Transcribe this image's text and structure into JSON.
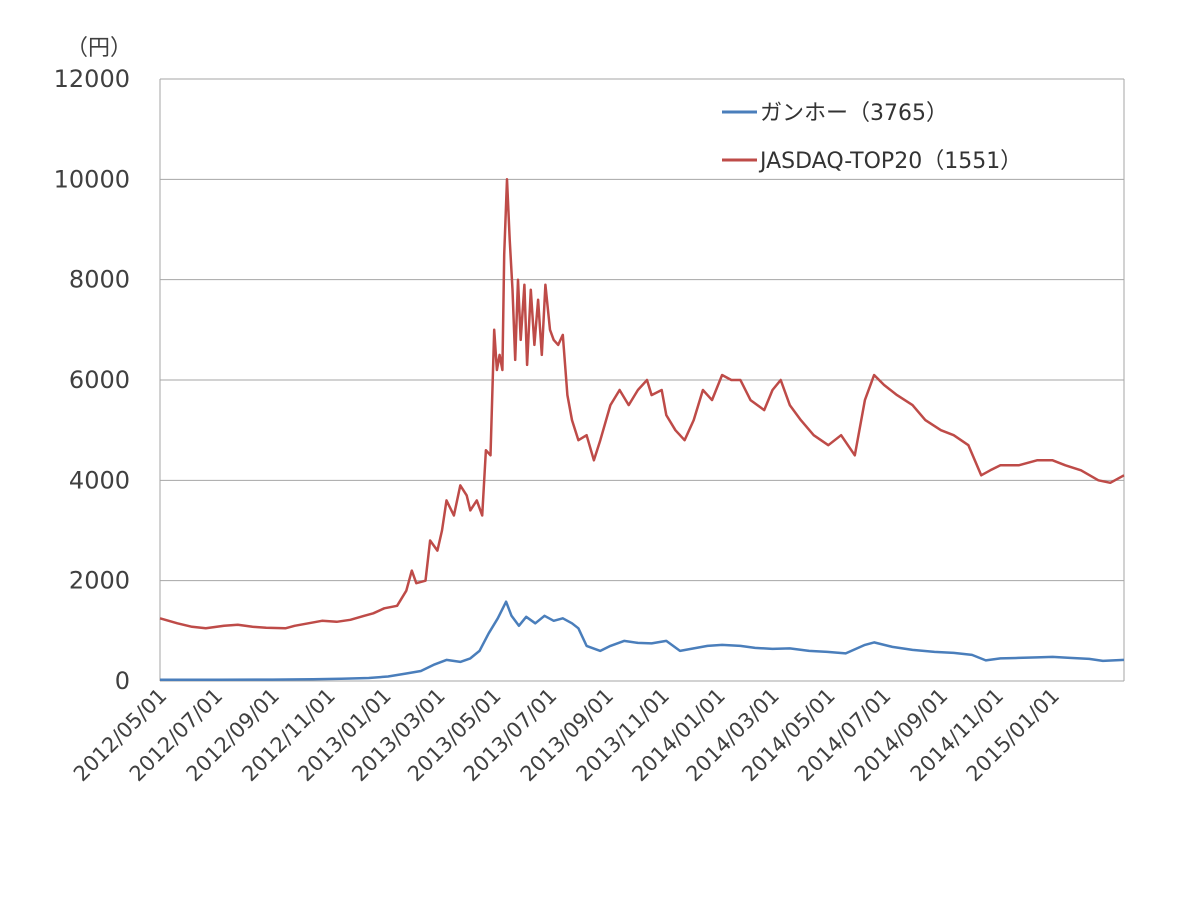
{
  "chart_data": {
    "type": "line",
    "title": "",
    "xlabel": "",
    "ylabel": "（円）",
    "ylim": [
      0,
      12000
    ],
    "y_ticks": [
      "0",
      "2000",
      "4000",
      "6000",
      "8000",
      "10000",
      "12000"
    ],
    "x_ticks": [
      "2012/05/01",
      "2012/07/01",
      "2012/09/01",
      "2012/11/01",
      "2013/01/01",
      "2013/03/01",
      "2013/05/01",
      "2013/07/01",
      "2013/09/01",
      "2013/11/01",
      "2014/01/01",
      "2014/03/01",
      "2014/05/01",
      "2014/07/01",
      "2014/09/01",
      "2014/11/01",
      "2015/01/01"
    ],
    "x_range": [
      "2012/05/01",
      "2015/03/20"
    ],
    "grid": "horizontal",
    "legend_position": "top-right",
    "series": [
      {
        "name": "ガンホー（3765）",
        "color": "#4a7ebb",
        "points": [
          [
            "2012/05/01",
            25
          ],
          [
            "2012/07/01",
            25
          ],
          [
            "2012/09/01",
            28
          ],
          [
            "2012/10/15",
            35
          ],
          [
            "2012/11/15",
            45
          ],
          [
            "2012/12/15",
            60
          ],
          [
            "2013/01/05",
            90
          ],
          [
            "2013/01/25",
            150
          ],
          [
            "2013/02/10",
            200
          ],
          [
            "2013/02/25",
            330
          ],
          [
            "2013/03/10",
            420
          ],
          [
            "2013/03/25",
            380
          ],
          [
            "2013/04/05",
            450
          ],
          [
            "2013/04/15",
            600
          ],
          [
            "2013/04/25",
            950
          ],
          [
            "2013/05/05",
            1250
          ],
          [
            "2013/05/14",
            1580
          ],
          [
            "2013/05/20",
            1300
          ],
          [
            "2013/05/28",
            1100
          ],
          [
            "2013/06/05",
            1280
          ],
          [
            "2013/06/15",
            1150
          ],
          [
            "2013/06/25",
            1300
          ],
          [
            "2013/07/05",
            1200
          ],
          [
            "2013/07/15",
            1250
          ],
          [
            "2013/07/25",
            1150
          ],
          [
            "2013/08/01",
            1050
          ],
          [
            "2013/08/10",
            700
          ],
          [
            "2013/08/25",
            600
          ],
          [
            "2013/09/05",
            700
          ],
          [
            "2013/09/20",
            800
          ],
          [
            "2013/10/05",
            760
          ],
          [
            "2013/10/20",
            750
          ],
          [
            "2013/11/05",
            800
          ],
          [
            "2013/11/20",
            600
          ],
          [
            "2013/12/05",
            650
          ],
          [
            "2013/12/20",
            700
          ],
          [
            "2014/01/05",
            720
          ],
          [
            "2014/01/25",
            700
          ],
          [
            "2014/02/10",
            660
          ],
          [
            "2014/03/01",
            640
          ],
          [
            "2014/03/20",
            650
          ],
          [
            "2014/04/10",
            600
          ],
          [
            "2014/04/30",
            580
          ],
          [
            "2014/05/20",
            550
          ],
          [
            "2014/06/10",
            720
          ],
          [
            "2014/06/20",
            770
          ],
          [
            "2014/07/10",
            680
          ],
          [
            "2014/08/01",
            620
          ],
          [
            "2014/08/25",
            580
          ],
          [
            "2014/09/15",
            560
          ],
          [
            "2014/10/05",
            520
          ],
          [
            "2014/10/20",
            410
          ],
          [
            "2014/11/05",
            450
          ],
          [
            "2014/11/25",
            460
          ],
          [
            "2014/12/15",
            470
          ],
          [
            "2015/01/01",
            480
          ],
          [
            "2015/01/20",
            460
          ],
          [
            "2015/02/10",
            440
          ],
          [
            "2015/02/25",
            400
          ],
          [
            "2015/03/20",
            420
          ]
        ]
      },
      {
        "name": "JASDAQ-TOP20（1551）",
        "color": "#be4b48",
        "points": [
          [
            "2012/05/01",
            1250
          ],
          [
            "2012/05/20",
            1150
          ],
          [
            "2012/06/05",
            1080
          ],
          [
            "2012/06/20",
            1050
          ],
          [
            "2012/07/10",
            1100
          ],
          [
            "2012/07/25",
            1120
          ],
          [
            "2012/08/10",
            1080
          ],
          [
            "2012/08/25",
            1060
          ],
          [
            "2012/09/15",
            1050
          ],
          [
            "2012/09/25",
            1100
          ],
          [
            "2012/10/10",
            1150
          ],
          [
            "2012/10/25",
            1200
          ],
          [
            "2012/11/10",
            1180
          ],
          [
            "2012/11/25",
            1220
          ],
          [
            "2012/12/10",
            1300
          ],
          [
            "2012/12/20",
            1350
          ],
          [
            "2013/01/01",
            1450
          ],
          [
            "2013/01/15",
            1500
          ],
          [
            "2013/01/25",
            1800
          ],
          [
            "2013/01/31",
            2200
          ],
          [
            "2013/02/05",
            1950
          ],
          [
            "2013/02/15",
            2000
          ],
          [
            "2013/02/20",
            2800
          ],
          [
            "2013/02/28",
            2600
          ],
          [
            "2013/03/05",
            3000
          ],
          [
            "2013/03/10",
            3600
          ],
          [
            "2013/03/18",
            3300
          ],
          [
            "2013/03/25",
            3900
          ],
          [
            "2013/04/01",
            3700
          ],
          [
            "2013/04/05",
            3400
          ],
          [
            "2013/04/12",
            3600
          ],
          [
            "2013/04/18",
            3300
          ],
          [
            "2013/04/22",
            4600
          ],
          [
            "2013/04/27",
            4500
          ],
          [
            "2013/05/01",
            7000
          ],
          [
            "2013/05/04",
            6200
          ],
          [
            "2013/05/07",
            6500
          ],
          [
            "2013/05/10",
            6200
          ],
          [
            "2013/05/12",
            8500
          ],
          [
            "2013/05/15",
            10000
          ],
          [
            "2013/05/18",
            8800
          ],
          [
            "2013/05/21",
            7800
          ],
          [
            "2013/05/24",
            6400
          ],
          [
            "2013/05/27",
            8000
          ],
          [
            "2013/05/30",
            6800
          ],
          [
            "2013/06/03",
            7900
          ],
          [
            "2013/06/06",
            6300
          ],
          [
            "2013/06/10",
            7800
          ],
          [
            "2013/06/14",
            6700
          ],
          [
            "2013/06/18",
            7600
          ],
          [
            "2013/06/22",
            6500
          ],
          [
            "2013/06/26",
            7900
          ],
          [
            "2013/07/01",
            7000
          ],
          [
            "2013/07/05",
            6800
          ],
          [
            "2013/07/10",
            6700
          ],
          [
            "2013/07/15",
            6900
          ],
          [
            "2013/07/20",
            5700
          ],
          [
            "2013/07/25",
            5200
          ],
          [
            "2013/08/01",
            4800
          ],
          [
            "2013/08/10",
            4900
          ],
          [
            "2013/08/18",
            4400
          ],
          [
            "2013/08/25",
            4800
          ],
          [
            "2013/09/05",
            5500
          ],
          [
            "2013/09/15",
            5800
          ],
          [
            "2013/09/25",
            5500
          ],
          [
            "2013/10/05",
            5800
          ],
          [
            "2013/10/15",
            6000
          ],
          [
            "2013/10/20",
            5700
          ],
          [
            "2013/10/31",
            5800
          ],
          [
            "2013/11/05",
            5300
          ],
          [
            "2013/11/15",
            5000
          ],
          [
            "2013/11/25",
            4800
          ],
          [
            "2013/12/05",
            5200
          ],
          [
            "2013/12/15",
            5800
          ],
          [
            "2013/12/25",
            5600
          ],
          [
            "2014/01/05",
            6100
          ],
          [
            "2014/01/15",
            6000
          ],
          [
            "2014/01/25",
            6000
          ],
          [
            "2014/02/05",
            5600
          ],
          [
            "2014/02/20",
            5400
          ],
          [
            "2014/03/01",
            5800
          ],
          [
            "2014/03/10",
            6000
          ],
          [
            "2014/03/20",
            5500
          ],
          [
            "2014/04/01",
            5200
          ],
          [
            "2014/04/15",
            4900
          ],
          [
            "2014/05/01",
            4700
          ],
          [
            "2014/05/15",
            4900
          ],
          [
            "2014/05/30",
            4500
          ],
          [
            "2014/06/10",
            5600
          ],
          [
            "2014/06/20",
            6100
          ],
          [
            "2014/07/01",
            5900
          ],
          [
            "2014/07/15",
            5700
          ],
          [
            "2014/08/01",
            5500
          ],
          [
            "2014/08/15",
            5200
          ],
          [
            "2014/09/01",
            5000
          ],
          [
            "2014/09/15",
            4900
          ],
          [
            "2014/10/01",
            4700
          ],
          [
            "2014/10/15",
            4100
          ],
          [
            "2014/10/25",
            4200
          ],
          [
            "2014/11/05",
            4300
          ],
          [
            "2014/11/25",
            4300
          ],
          [
            "2014/12/15",
            4400
          ],
          [
            "2015/01/01",
            4400
          ],
          [
            "2015/01/15",
            4300
          ],
          [
            "2015/02/01",
            4200
          ],
          [
            "2015/02/20",
            4000
          ],
          [
            "2015/03/05",
            3950
          ],
          [
            "2015/03/20",
            4100
          ]
        ]
      }
    ]
  }
}
